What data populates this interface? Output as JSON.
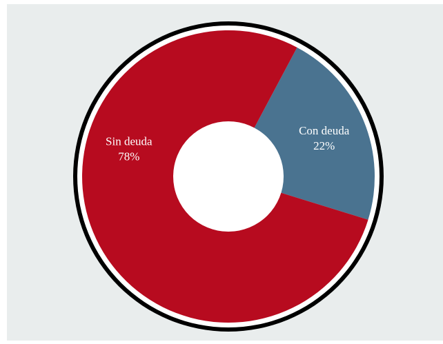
{
  "chart_data": {
    "type": "pie",
    "donut": true,
    "title": "",
    "categories": [
      "Con deuda",
      "Sin deuda"
    ],
    "values": [
      22,
      78
    ],
    "value_labels": [
      "22%",
      "78%"
    ],
    "colors": [
      "#4a7390",
      "#b70b1f"
    ]
  },
  "style": {
    "panel_color": "#e9eded",
    "ring_color": "#000000",
    "hole_color": "#ffffff"
  }
}
